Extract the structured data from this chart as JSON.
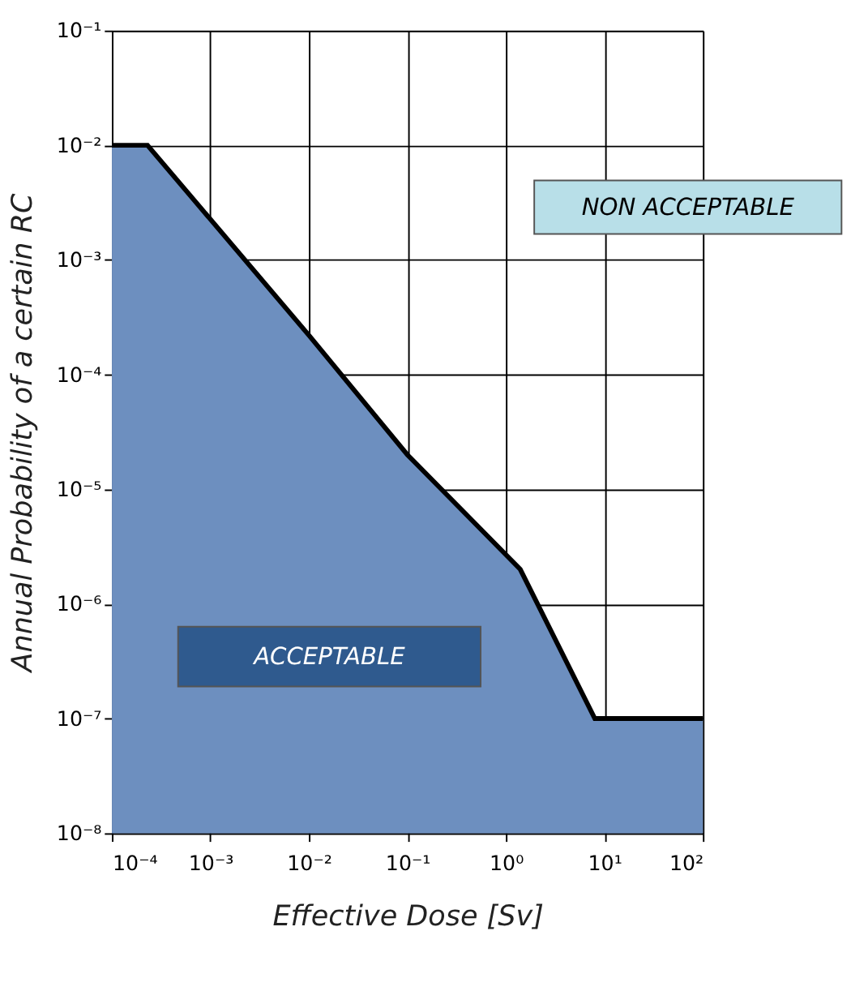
{
  "chart_data": {
    "type": "area",
    "xlabel": "Effective Dose [Sv]",
    "ylabel": "Annual Probability of a certain RC",
    "log": "xy",
    "grid": true,
    "x": [
      0.0001,
      0.00023,
      0.01,
      0.1,
      1.4,
      8,
      100
    ],
    "series": [
      {
        "color": "#6d8fbf",
        "values": [
          0.01,
          0.01,
          0.00022,
          2e-05,
          2e-06,
          1e-07,
          1e-07
        ]
      }
    ],
    "xlim": [
      0.0001,
      100
    ],
    "ylim": [
      1e-08,
      0.1
    ],
    "xticks": [
      {
        "value": 0.0001,
        "label": "10⁻⁴"
      },
      {
        "value": 0.001,
        "label": "10⁻³"
      },
      {
        "value": 0.01,
        "label": "10⁻²"
      },
      {
        "value": 0.1,
        "label": "10⁻¹"
      },
      {
        "value": 1,
        "label": "10⁰"
      },
      {
        "value": 10,
        "label": "10¹"
      },
      {
        "value": 100,
        "label": "10²"
      }
    ],
    "yticks": [
      {
        "value": 1e-08,
        "label": "10⁻⁸"
      },
      {
        "value": 1e-07,
        "label": "10⁻⁷"
      },
      {
        "value": 1e-06,
        "label": "10⁻⁶"
      },
      {
        "value": 1e-05,
        "label": "10⁻⁵"
      },
      {
        "value": 0.0001,
        "label": "10⁻⁴"
      },
      {
        "value": 0.001,
        "label": "10⁻³"
      },
      {
        "value": 0.01,
        "label": "10⁻²"
      },
      {
        "value": 0.1,
        "label": "10⁻¹"
      }
    ],
    "annotations": [
      "NON ACCEPTABLE",
      "ACCEPTABLE"
    ]
  }
}
